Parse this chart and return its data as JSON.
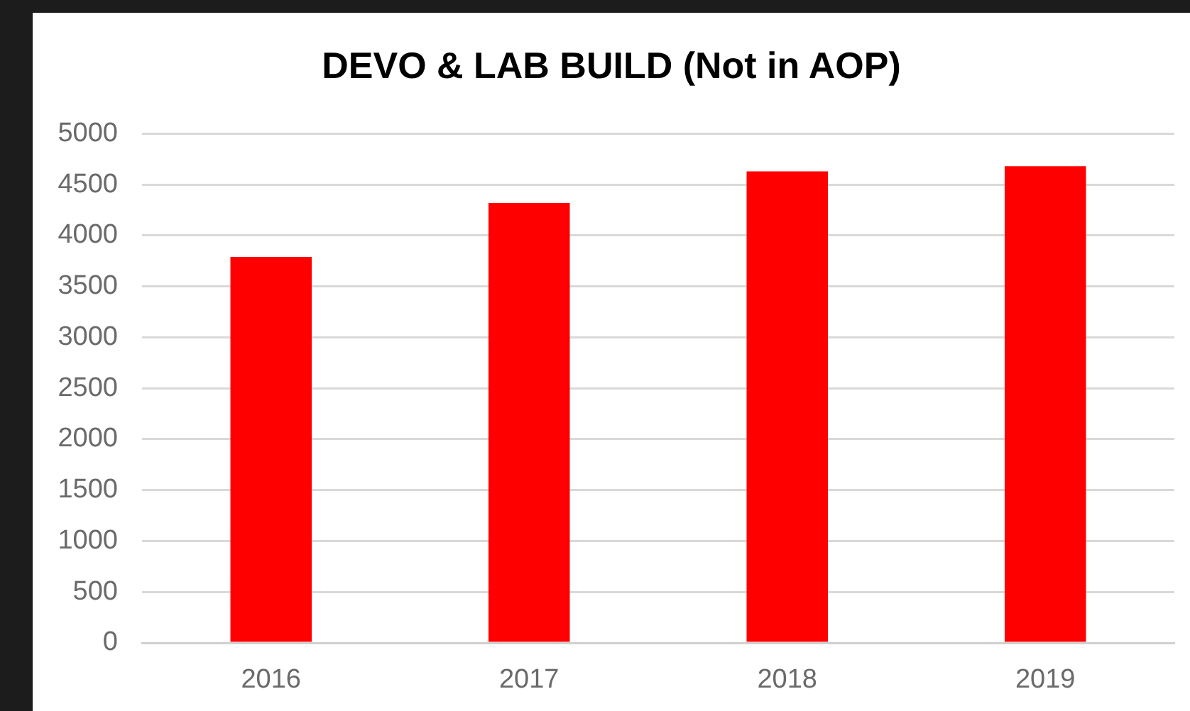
{
  "chart_data": {
    "type": "bar",
    "title": "DEVO & LAB BUILD (Not in AOP)",
    "categories": [
      "2016",
      "2017",
      "2018",
      "2019"
    ],
    "values": [
      3790,
      4320,
      4630,
      4680
    ],
    "color": "#ff0000",
    "ylim": [
      0,
      5000
    ],
    "yticks": [
      0,
      500,
      1000,
      1500,
      2000,
      2500,
      3000,
      3500,
      4000,
      4500,
      5000
    ],
    "grid": "y"
  }
}
